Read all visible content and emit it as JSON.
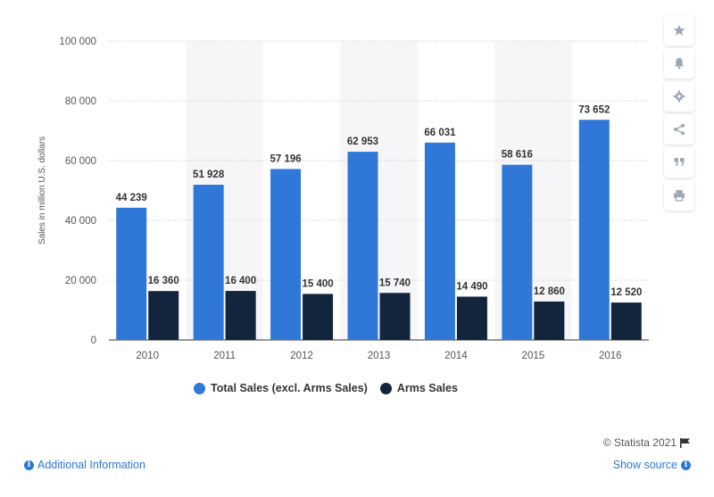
{
  "colors": {
    "total": "#2f78d8",
    "arms": "#13253d",
    "band": "#f6f6f8",
    "grid": "#cfcfcf",
    "text": "#333333",
    "link": "#2b77d8"
  },
  "toolbar": {
    "items": [
      {
        "name": "star-icon",
        "label": "★"
      },
      {
        "name": "bell-icon",
        "label": ""
      },
      {
        "name": "gear-icon",
        "label": "⚙"
      },
      {
        "name": "share-icon",
        "label": ""
      },
      {
        "name": "quote-icon",
        "label": "❞"
      },
      {
        "name": "print-icon",
        "label": ""
      }
    ]
  },
  "legend": {
    "total_label": "Total Sales (excl. Arms Sales)",
    "arms_label": "Arms Sales"
  },
  "footer": {
    "copyright": "© Statista 2021",
    "additional_info": "Additional Information",
    "show_source": "Show source"
  },
  "chart_data": {
    "type": "bar",
    "title": "",
    "xlabel": "",
    "ylabel": "Sales in million U.S. dollars",
    "ylim": [
      0,
      100000
    ],
    "yticks": [
      0,
      20000,
      40000,
      60000,
      80000,
      100000
    ],
    "ytick_labels": [
      "0",
      "20 000",
      "40 000",
      "60 000",
      "80 000",
      "100 000"
    ],
    "grid": true,
    "legend_position": "bottom",
    "categories": [
      "2010",
      "2011",
      "2012",
      "2013",
      "2014",
      "2015",
      "2016"
    ],
    "series": [
      {
        "name": "Total Sales (excl. Arms Sales)",
        "values": [
          44239,
          51928,
          57196,
          62953,
          66031,
          58616,
          73652
        ],
        "labels": [
          "44 239",
          "51 928",
          "57 196",
          "62 953",
          "66 031",
          "58 616",
          "73 652"
        ]
      },
      {
        "name": "Arms Sales",
        "values": [
          16360,
          16400,
          15400,
          15740,
          14490,
          12860,
          12520
        ],
        "labels": [
          "16 360",
          "16 400",
          "15 400",
          "15 740",
          "14 490",
          "12 860",
          "12 520"
        ]
      }
    ]
  }
}
